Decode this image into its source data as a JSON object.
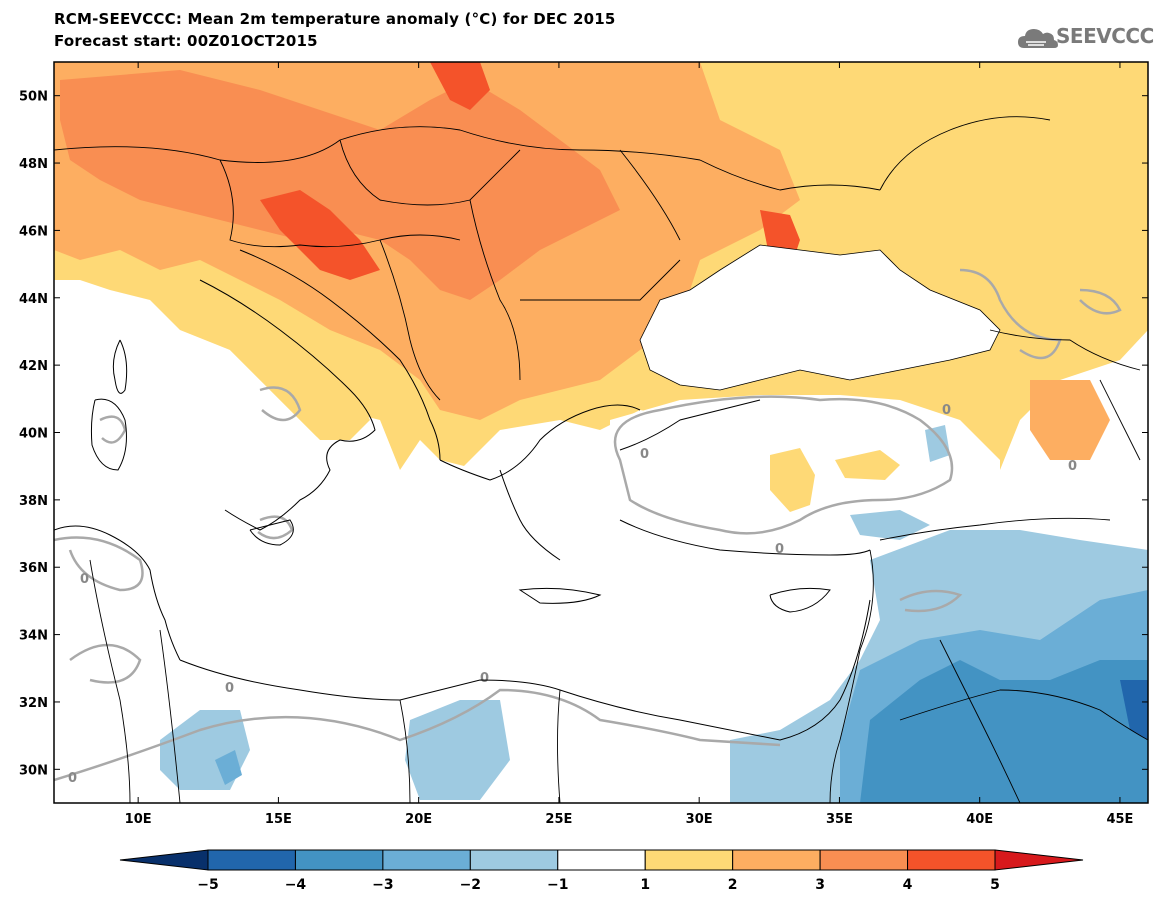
{
  "header": {
    "title": "RCM-SEEVCCC: Mean 2m temperature anomaly (°C) for DEC 2015",
    "subtitle": "Forecast start: 00Z01OCT2015",
    "logo_text": "SEEVCCC"
  },
  "map": {
    "lon_range": [
      7,
      46
    ],
    "lat_range": [
      29,
      51
    ],
    "lon_ticks": [
      10,
      15,
      20,
      25,
      30,
      35,
      40,
      45
    ],
    "lon_tick_labels": [
      "10E",
      "15E",
      "20E",
      "25E",
      "30E",
      "35E",
      "40E",
      "45E"
    ],
    "lat_ticks": [
      30,
      32,
      34,
      36,
      38,
      40,
      42,
      44,
      46,
      48,
      50
    ],
    "lat_tick_labels": [
      "30N",
      "32N",
      "34N",
      "36N",
      "38N",
      "40N",
      "42N",
      "44N",
      "46N",
      "48N",
      "50N"
    ],
    "contour_label": "0"
  },
  "colorbar": {
    "bins": [
      -5,
      -4,
      -3,
      -2,
      -1,
      1,
      2,
      3,
      4,
      5
    ],
    "bin_labels": [
      "−5",
      "−4",
      "−3",
      "−2",
      "−1",
      "1",
      "2",
      "3",
      "4",
      "5"
    ],
    "colors": [
      "#08306b",
      "#2166ac",
      "#4393c3",
      "#6baed6",
      "#9ecae1",
      "#ffffff",
      "#fed976",
      "#fdae61",
      "#f98e52",
      "#f4532a",
      "#d7191c"
    ]
  }
}
